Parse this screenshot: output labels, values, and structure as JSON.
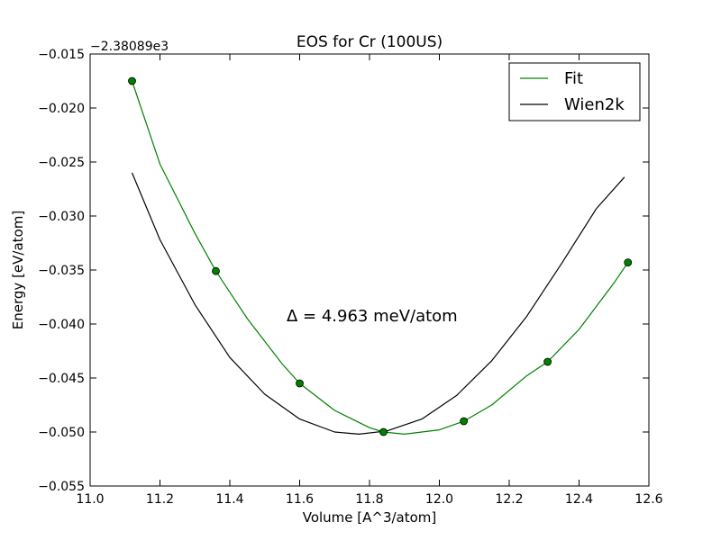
{
  "chart_data": {
    "type": "line",
    "title": "EOS for Cr (100US)",
    "xlabel": "Volume [A^3/atom]",
    "ylabel": "Energy [eV/atom]",
    "y_offset_label": "−2.38089e3",
    "annotation": "Δ = 4.963 meV/atom",
    "xlim": [
      11.0,
      12.6
    ],
    "ylim": [
      -0.055,
      -0.015
    ],
    "x_ticks": [
      11.0,
      11.2,
      11.4,
      11.6,
      11.8,
      12.0,
      12.2,
      12.4,
      12.6
    ],
    "x_tick_labels": [
      "11.0",
      "11.2",
      "11.4",
      "11.6",
      "11.8",
      "12.0",
      "12.2",
      "12.4",
      "12.6"
    ],
    "y_ticks": [
      -0.015,
      -0.02,
      -0.025,
      -0.03,
      -0.035,
      -0.04,
      -0.045,
      -0.05,
      -0.055
    ],
    "y_tick_labels": [
      "−0.015",
      "−0.020",
      "−0.025",
      "−0.030",
      "−0.035",
      "−0.040",
      "−0.045",
      "−0.050",
      "−0.055"
    ],
    "legend_position": "top-right",
    "grid": false,
    "series": [
      {
        "name": "Fit",
        "color": "#008000",
        "kind": "line",
        "x": [
          11.12,
          11.2,
          11.3,
          11.36,
          11.45,
          11.55,
          11.6,
          11.7,
          11.8,
          11.84,
          11.9,
          12.0,
          12.07,
          12.15,
          12.25,
          12.31,
          12.4,
          12.5,
          12.54
        ],
        "y": [
          -0.0175,
          -0.0252,
          -0.0316,
          -0.0351,
          -0.0395,
          -0.0437,
          -0.0455,
          -0.048,
          -0.0496,
          -0.05,
          -0.0502,
          -0.0498,
          -0.049,
          -0.0475,
          -0.0448,
          -0.0435,
          -0.0405,
          -0.0362,
          -0.0343
        ]
      },
      {
        "name": "Data points",
        "color": "#008000",
        "kind": "scatter",
        "x": [
          11.12,
          11.36,
          11.6,
          11.84,
          12.07,
          12.31,
          12.54
        ],
        "y": [
          -0.0175,
          -0.0351,
          -0.0455,
          -0.05,
          -0.049,
          -0.0435,
          -0.0343
        ]
      },
      {
        "name": "Wien2k",
        "color": "#000000",
        "kind": "line",
        "x": [
          11.12,
          11.2,
          11.3,
          11.4,
          11.5,
          11.6,
          11.7,
          11.77,
          11.85,
          11.95,
          12.05,
          12.15,
          12.25,
          12.35,
          12.45,
          12.53
        ],
        "y": [
          -0.026,
          -0.0322,
          -0.0382,
          -0.0431,
          -0.0465,
          -0.0488,
          -0.05,
          -0.0502,
          -0.0499,
          -0.0488,
          -0.0466,
          -0.0434,
          -0.0393,
          -0.0344,
          -0.0293,
          -0.0264
        ]
      }
    ]
  }
}
